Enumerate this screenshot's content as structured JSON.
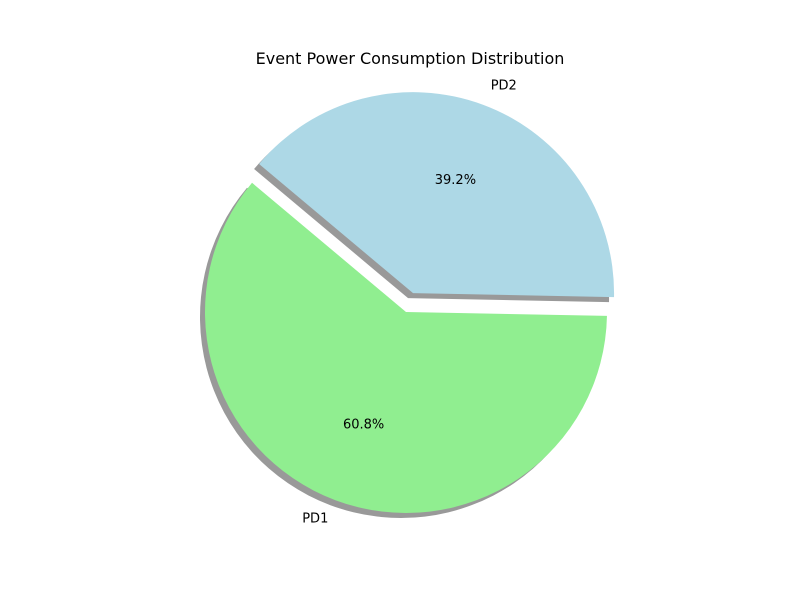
{
  "chart_data": {
    "type": "pie",
    "title": "Event Power Consumption Distribution",
    "start_angle_deg": 140,
    "shadow": true,
    "slices": [
      {
        "label": "PD1",
        "value": 60.8,
        "pct_label": "60.8%",
        "color": "#90ee90",
        "explode": 0
      },
      {
        "label": "PD2",
        "value": 39.2,
        "pct_label": "39.2%",
        "color": "#add8e6",
        "explode": 0.1
      }
    ]
  }
}
